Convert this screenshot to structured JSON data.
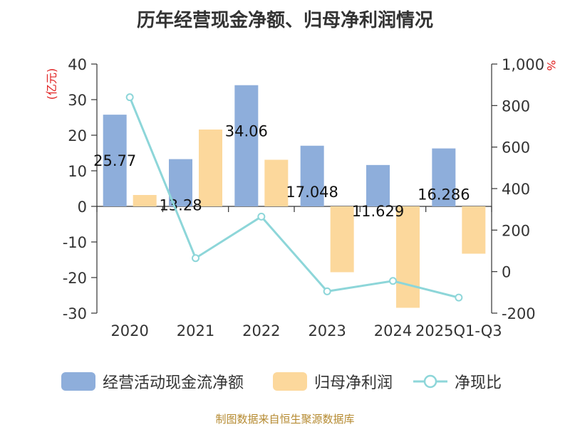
{
  "title": "历年经营现金净额、归母净利润情况",
  "footer": "制图数据来自恒生聚源数据库",
  "chart_data": {
    "type": "bar",
    "categories": [
      "2020",
      "2021",
      "2022",
      "2023",
      "2024",
      "2025Q1-Q3"
    ],
    "series": [
      {
        "name": "经营活动现金流净额",
        "kind": "bar",
        "axis": "left",
        "color": "#8eaedb",
        "values": [
          25.77,
          13.28,
          34.06,
          17.048,
          11.629,
          16.286
        ],
        "labels": [
          "25.77",
          "13.28",
          "34.06",
          "17.048",
          "11.629",
          "16.286"
        ]
      },
      {
        "name": "归母净利润",
        "kind": "bar",
        "axis": "left",
        "color": "#fcd89c",
        "values": [
          3.2,
          21.6,
          13.1,
          -18.5,
          -28.5,
          -13.3
        ]
      },
      {
        "name": "净现比",
        "kind": "line",
        "axis": "right",
        "color": "#8dd6d9",
        "values": [
          840,
          65,
          265,
          -95,
          -45,
          -125
        ]
      }
    ],
    "y_left": {
      "label": "(亿元)",
      "min": -30,
      "max": 40,
      "ticks": [
        40,
        30,
        20,
        10,
        0,
        -10,
        -20,
        -30
      ],
      "tick_labels": [
        "40",
        "30",
        "20",
        "10",
        "0",
        "-10",
        "-20",
        "-30"
      ]
    },
    "y_right": {
      "label": "%",
      "min": -200,
      "max": 1000,
      "ticks": [
        1000,
        800,
        600,
        400,
        200,
        0,
        -200
      ],
      "tick_labels": [
        "1,000",
        "800",
        "600",
        "400",
        "200",
        "0",
        "-200"
      ]
    },
    "legend_position": "bottom"
  }
}
